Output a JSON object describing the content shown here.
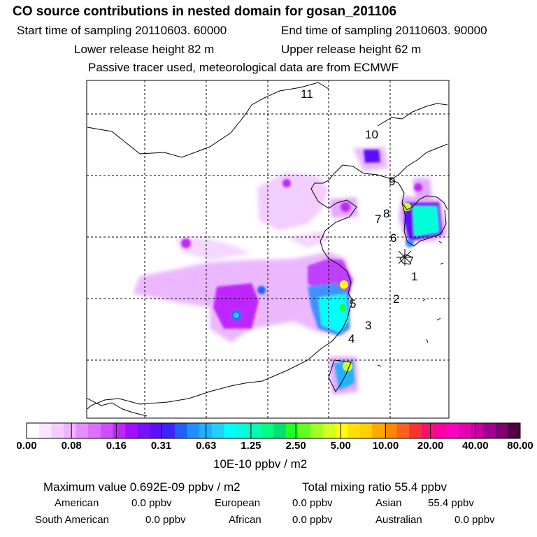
{
  "header": {
    "title": "CO  source contributions in nested domain for gosan_201106",
    "start_time": "Start time of sampling 20110603. 60000",
    "end_time": "End time of sampling 20110603. 90000",
    "lower_release": "Lower release height   82 m",
    "upper_release": "Upper release height   62 m",
    "tracer_note": "Passive tracer used, meteorological data are from ECMWF"
  },
  "map": {
    "trajectory_labels": [
      "1",
      "2",
      "3",
      "4",
      "5",
      "6",
      "7",
      "8",
      "9",
      "10",
      "11"
    ],
    "receptor_marker": "gosan-receptor-star"
  },
  "chart_data": {
    "type": "heatmap",
    "title": "CO  source contributions in nested domain for gosan_201106",
    "colorbar_ticks": [
      "0.00",
      "0.08",
      "0.16",
      "0.31",
      "0.63",
      "1.25",
      "2.50",
      "5.00",
      "10.00",
      "20.00",
      "40.00",
      "80.00"
    ],
    "colorbar_colors": [
      "#ffffff",
      "#fbe6ff",
      "#f6ccff",
      "#efb3ff",
      "#e690ff",
      "#dc70ff",
      "#cf4dff",
      "#bf26ff",
      "#a010ff",
      "#7a10ff",
      "#5c10ff",
      "#4020ff",
      "#2060ff",
      "#2090ff",
      "#20b0ff",
      "#20d0ff",
      "#00ffff",
      "#00ffd8",
      "#00ffb0",
      "#00ff80",
      "#00e070",
      "#20ff20",
      "#60ff20",
      "#a0ff20",
      "#d0ff20",
      "#ffff00",
      "#ffe000",
      "#ffd000",
      "#ffa800",
      "#ff8800",
      "#ff6020",
      "#ff3030",
      "#ff1070",
      "#ff00a0",
      "#ff00c0",
      "#e800b0",
      "#c800a0",
      "#a00090",
      "#800070",
      "#500040"
    ],
    "unit": "10E-10 ppbv / m2",
    "max_value": "0.692E-09",
    "total_mixing_ratio": "55.4"
  },
  "stats": {
    "max_label": "Maximum value  0.692E-09 ppbv / m2",
    "total_label": "Total mixing ratio       55.4 ppbv"
  },
  "sources": {
    "american": {
      "label": "American",
      "value": "0.0 ppbv"
    },
    "european": {
      "label": "European",
      "value": "0.0 ppbv"
    },
    "asian": {
      "label": "Asian",
      "value": "55.4 ppbv"
    },
    "south_american": {
      "label": "South American",
      "value": "0.0 ppbv"
    },
    "african": {
      "label": "African",
      "value": "0.0 ppbv"
    },
    "australian": {
      "label": "Australian",
      "value": "0.0 ppbv"
    }
  }
}
